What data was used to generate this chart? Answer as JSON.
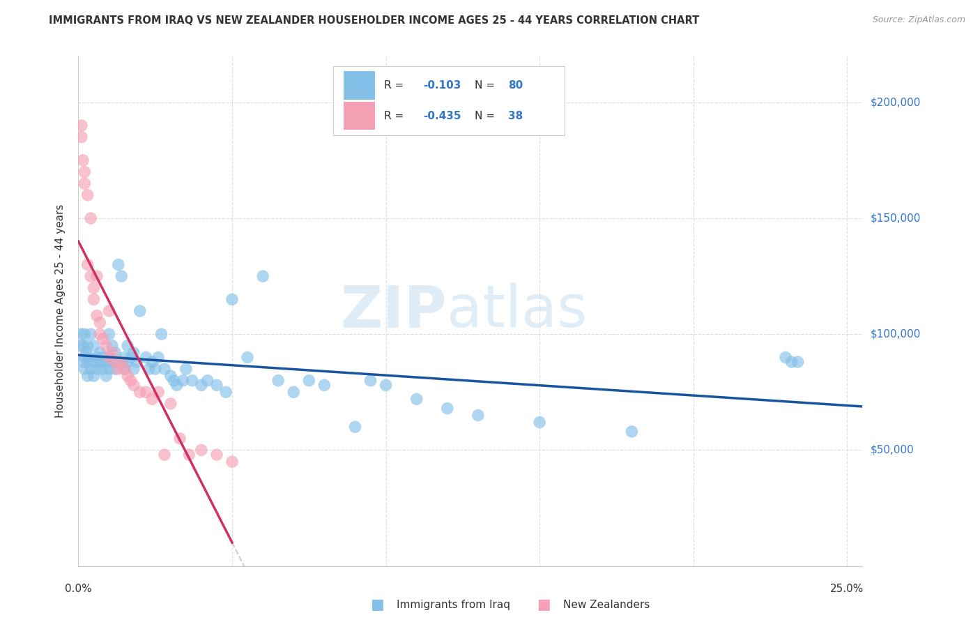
{
  "title": "IMMIGRANTS FROM IRAQ VS NEW ZEALANDER HOUSEHOLDER INCOME AGES 25 - 44 YEARS CORRELATION CHART",
  "source": "Source: ZipAtlas.com",
  "ylabel": "Householder Income Ages 25 - 44 years",
  "y_tick_labels": [
    "$50,000",
    "$100,000",
    "$150,000",
    "$200,000"
  ],
  "y_tick_values": [
    50000,
    100000,
    150000,
    200000
  ],
  "ylim": [
    0,
    220000
  ],
  "xlim": [
    0.0,
    0.255
  ],
  "color_iraq": "#85c0e8",
  "color_nz": "#f4a0b5",
  "color_iraq_line": "#1855a0",
  "color_nz_line": "#d03060",
  "color_nz_ext": "#cccccc",
  "background": "#ffffff",
  "iraq_x": [
    0.001,
    0.001,
    0.0015,
    0.0015,
    0.002,
    0.002,
    0.002,
    0.0025,
    0.003,
    0.003,
    0.003,
    0.0035,
    0.004,
    0.004,
    0.005,
    0.005,
    0.005,
    0.006,
    0.006,
    0.007,
    0.007,
    0.008,
    0.008,
    0.009,
    0.009,
    0.01,
    0.01,
    0.01,
    0.011,
    0.011,
    0.012,
    0.012,
    0.013,
    0.013,
    0.014,
    0.014,
    0.015,
    0.015,
    0.016,
    0.016,
    0.017,
    0.018,
    0.018,
    0.019,
    0.02,
    0.022,
    0.023,
    0.024,
    0.025,
    0.026,
    0.027,
    0.028,
    0.03,
    0.031,
    0.032,
    0.034,
    0.035,
    0.037,
    0.04,
    0.042,
    0.045,
    0.048,
    0.05,
    0.055,
    0.06,
    0.065,
    0.07,
    0.075,
    0.08,
    0.09,
    0.095,
    0.1,
    0.11,
    0.12,
    0.13,
    0.15,
    0.18,
    0.23,
    0.232,
    0.234
  ],
  "iraq_y": [
    100000,
    95000,
    95000,
    88000,
    90000,
    85000,
    100000,
    92000,
    88000,
    82000,
    95000,
    90000,
    85000,
    100000,
    95000,
    88000,
    82000,
    85000,
    90000,
    92000,
    88000,
    85000,
    90000,
    88000,
    82000,
    85000,
    90000,
    100000,
    95000,
    88000,
    85000,
    92000,
    88000,
    130000,
    125000,
    88000,
    90000,
    85000,
    95000,
    88000,
    90000,
    85000,
    92000,
    88000,
    110000,
    90000,
    85000,
    88000,
    85000,
    90000,
    100000,
    85000,
    82000,
    80000,
    78000,
    80000,
    85000,
    80000,
    78000,
    80000,
    78000,
    75000,
    115000,
    90000,
    125000,
    80000,
    75000,
    80000,
    78000,
    60000,
    80000,
    78000,
    72000,
    68000,
    65000,
    62000,
    58000,
    90000,
    88000,
    88000
  ],
  "nz_x": [
    0.001,
    0.001,
    0.0015,
    0.002,
    0.002,
    0.003,
    0.003,
    0.004,
    0.004,
    0.005,
    0.005,
    0.006,
    0.006,
    0.007,
    0.007,
    0.008,
    0.009,
    0.01,
    0.01,
    0.011,
    0.012,
    0.013,
    0.014,
    0.015,
    0.016,
    0.017,
    0.018,
    0.02,
    0.022,
    0.024,
    0.026,
    0.028,
    0.03,
    0.033,
    0.036,
    0.04,
    0.045,
    0.05
  ],
  "nz_y": [
    190000,
    185000,
    175000,
    170000,
    165000,
    160000,
    130000,
    150000,
    125000,
    120000,
    115000,
    108000,
    125000,
    105000,
    100000,
    98000,
    95000,
    90000,
    110000,
    92000,
    88000,
    85000,
    88000,
    85000,
    82000,
    80000,
    78000,
    75000,
    75000,
    72000,
    75000,
    48000,
    70000,
    55000,
    48000,
    50000,
    48000,
    45000
  ]
}
